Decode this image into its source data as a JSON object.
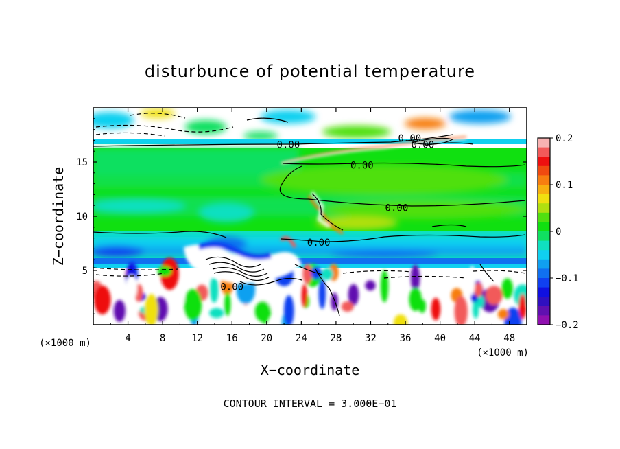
{
  "chart_data": {
    "type": "heatmap",
    "title": "disturbunce of potential temperature",
    "xlabel": "X−coordinate",
    "ylabel": "Z−coordinate",
    "x_unit_left": "(×1000 m)",
    "x_unit_right": "(×1000 m)",
    "x_ticks": [
      4,
      8,
      12,
      16,
      20,
      24,
      28,
      32,
      36,
      40,
      44,
      48
    ],
    "y_ticks": [
      5,
      10,
      15
    ],
    "xlim": [
      0,
      50
    ],
    "ylim": [
      0,
      20
    ],
    "colorbar": {
      "range": [
        -0.2,
        0.2
      ],
      "tick_labels": [
        "0.2",
        "0.1",
        "0",
        "−0.1",
        "−0.2"
      ],
      "tick_values": [
        0.2,
        0.1,
        0,
        -0.1,
        -0.2
      ],
      "colors": [
        "#f8b2b2",
        "#f25a5a",
        "#ee1010",
        "#f04a10",
        "#f77e10",
        "#f7b010",
        "#f0e010",
        "#b0e010",
        "#50e010",
        "#10e010",
        "#10e060",
        "#10e0c0",
        "#10d0f0",
        "#10a0f0",
        "#1070f0",
        "#1040f0",
        "#1010e0",
        "#3010c0",
        "#6010b0",
        "#9010b0"
      ]
    },
    "contour_labels": [
      {
        "text": "0.00",
        "x": 22.5,
        "y": 16.6
      },
      {
        "text": "0.00",
        "x": 36.5,
        "y": 17.2
      },
      {
        "text": "0.00",
        "x": 38.0,
        "y": 16.6
      },
      {
        "text": "0.00",
        "x": 31.0,
        "y": 14.7
      },
      {
        "text": "0.00",
        "x": 35.0,
        "y": 10.8
      },
      {
        "text": "0.00",
        "x": 26.0,
        "y": 7.6
      },
      {
        "text": "0.00",
        "x": 16.0,
        "y": 3.5
      }
    ],
    "contour_interval_text": "CONTOUR INTERVAL = 3.000E−01"
  }
}
